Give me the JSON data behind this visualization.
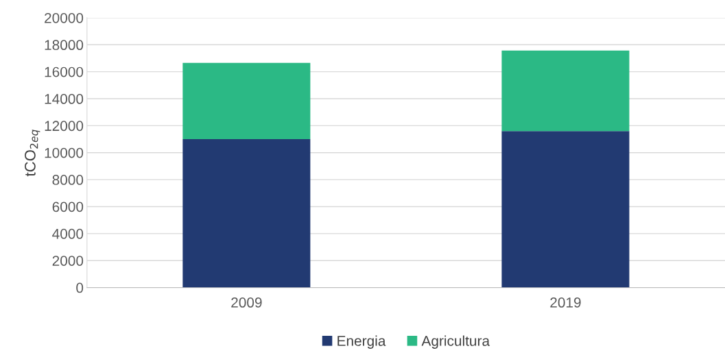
{
  "chart_data": {
    "type": "bar",
    "stacked": true,
    "ylabel": "tCO$_{2eq}$",
    "categories": [
      "2009",
      "2019"
    ],
    "series": [
      {
        "name": "Energia",
        "color": "#223a72",
        "values": [
          11000,
          11600
        ]
      },
      {
        "name": "Agricultura",
        "color": "#2bb985",
        "values": [
          5650,
          5970
        ]
      }
    ],
    "ylim": [
      0,
      20000
    ],
    "yticks": [
      0,
      2000,
      4000,
      6000,
      8000,
      10000,
      12000,
      14000,
      16000,
      18000,
      20000
    ],
    "grid": "y",
    "legend": "bottom"
  }
}
